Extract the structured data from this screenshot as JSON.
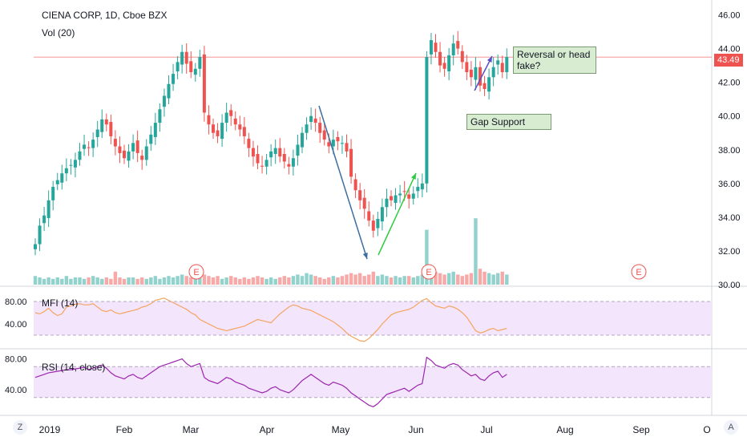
{
  "ui": {
    "left_button": "Z",
    "right_button": "A"
  },
  "colors": {
    "up": "#26a69a",
    "down": "#ef5350",
    "band": "#f3e5fb",
    "mfi": "#f4a460",
    "rsi": "#9c27b0",
    "price_line": "#ef5350"
  },
  "chart_data": [
    {
      "type": "candlestick",
      "title": "CIENA CORP, 1D, Cboe BZX",
      "volume_label": "Vol (20)",
      "last_price": 43.49,
      "last_price_label": "43.49",
      "y_ticks": [
        "46.00",
        "44.00",
        "42.00",
        "40.00",
        "38.00",
        "36.00",
        "34.00",
        "32.00",
        "30.00"
      ],
      "ylim": [
        30,
        46.5
      ],
      "x_ticks": [
        "2019",
        "Feb",
        "Mar",
        "Apr",
        "May",
        "Jun",
        "Jul",
        "Aug",
        "Sep",
        "O"
      ],
      "earnings_markers": [
        "E",
        "E",
        "E"
      ],
      "annotations": [
        {
          "text": "Reversal or head fake?"
        },
        {
          "text": "Gap Support"
        }
      ],
      "closes": [
        32.4,
        33.5,
        34.1,
        35.0,
        35.8,
        36.2,
        36.6,
        36.9,
        37.1,
        37.4,
        37.9,
        38.3,
        38.1,
        38.6,
        39.2,
        39.8,
        39.5,
        38.8,
        38.2,
        37.8,
        37.5,
        37.9,
        38.4,
        37.8,
        37.4,
        38.2,
        38.9,
        39.6,
        40.4,
        41.2,
        41.9,
        42.5,
        43.2,
        43.8,
        43.1,
        42.6,
        42.8,
        43.5,
        40.2,
        39.5,
        39.0,
        38.8,
        39.6,
        40.2,
        40.0,
        39.5,
        39.2,
        38.8,
        38.1,
        37.6,
        37.2,
        37.0,
        37.4,
        37.9,
        38.1,
        37.6,
        37.3,
        37.0,
        37.5,
        38.3,
        39.0,
        39.5,
        40.0,
        39.6,
        39.0,
        38.6,
        38.2,
        38.6,
        38.5,
        38.4,
        37.9,
        36.4,
        35.6,
        35.0,
        34.5,
        33.8,
        33.2,
        33.9,
        34.6,
        35.1,
        35.0,
        35.3,
        35.4,
        35.5,
        35.1,
        35.4,
        35.8,
        36.0,
        43.5,
        44.5,
        43.8,
        43.0,
        42.8,
        43.6,
        44.3,
        44.0,
        43.2,
        42.6,
        42.3,
        42.9,
        41.8,
        41.6,
        42.3,
        42.9,
        43.3,
        42.6,
        43.5
      ],
      "volumes": [
        0.6,
        0.5,
        0.4,
        0.5,
        0.4,
        0.5,
        0.4,
        0.6,
        0.4,
        0.5,
        0.5,
        0.4,
        0.5,
        0.6,
        0.5,
        0.4,
        0.5,
        0.4,
        0.9,
        0.5,
        0.4,
        0.5,
        0.5,
        0.4,
        0.5,
        0.4,
        0.5,
        0.6,
        0.4,
        0.5,
        0.6,
        0.5,
        0.6,
        0.7,
        0.6,
        0.5,
        0.8,
        0.9,
        0.7,
        0.6,
        0.5,
        0.6,
        0.4,
        0.5,
        0.6,
        0.5,
        0.4,
        0.5,
        0.4,
        0.5,
        0.6,
        0.5,
        0.4,
        0.5,
        0.4,
        0.5,
        0.6,
        0.5,
        0.6,
        0.7,
        0.6,
        0.8,
        0.7,
        0.6,
        0.5,
        0.4,
        0.5,
        0.6,
        0.5,
        0.6,
        0.7,
        0.8,
        0.7,
        0.8,
        0.6,
        0.7,
        0.9,
        0.6,
        0.7,
        0.6,
        0.5,
        0.6,
        0.5,
        0.6,
        0.6,
        0.5,
        0.6,
        0.7,
        3.8,
        1.0,
        0.9,
        0.8,
        0.7,
        0.8,
        0.9,
        0.7,
        0.6,
        0.7,
        0.8,
        4.6,
        1.1,
        0.9,
        0.8,
        0.7,
        0.8,
        0.9,
        0.7
      ]
    },
    {
      "type": "line",
      "title": "MFI (14)",
      "y_ticks": [
        "80.00",
        "40.00"
      ],
      "ylim": [
        0,
        100
      ],
      "bands": [
        80,
        20
      ],
      "values": [
        60,
        58,
        62,
        68,
        60,
        55,
        58,
        70,
        72,
        75,
        76,
        74,
        74,
        76,
        70,
        64,
        62,
        65,
        60,
        58,
        60,
        62,
        64,
        66,
        70,
        72,
        76,
        82,
        84,
        86,
        82,
        78,
        74,
        70,
        66,
        60,
        56,
        48,
        44,
        40,
        36,
        32,
        30,
        28,
        30,
        32,
        34,
        36,
        40,
        44,
        48,
        46,
        44,
        42,
        50,
        58,
        64,
        70,
        74,
        72,
        68,
        66,
        64,
        60,
        56,
        52,
        48,
        44,
        38,
        32,
        24,
        18,
        14,
        10,
        9,
        14,
        22,
        30,
        40,
        48,
        56,
        60,
        62,
        64,
        66,
        70,
        76,
        82,
        85,
        78,
        72,
        70,
        68,
        72,
        70,
        66,
        60,
        52,
        40,
        28,
        24,
        26,
        30,
        32,
        28,
        30,
        32
      ]
    },
    {
      "type": "line",
      "title": "RSI (14, close)",
      "y_ticks": [
        "80.00",
        "40.00"
      ],
      "ylim": [
        10,
        90
      ],
      "bands": [
        70,
        30
      ],
      "values": [
        56,
        58,
        60,
        62,
        63,
        64,
        65,
        66,
        66,
        67,
        68,
        69,
        66,
        68,
        70,
        72,
        68,
        62,
        58,
        56,
        54,
        58,
        60,
        56,
        54,
        58,
        62,
        66,
        70,
        72,
        74,
        76,
        78,
        80,
        74,
        70,
        72,
        74,
        56,
        52,
        50,
        48,
        52,
        56,
        54,
        50,
        48,
        46,
        42,
        40,
        38,
        36,
        38,
        42,
        44,
        40,
        38,
        36,
        40,
        46,
        52,
        56,
        60,
        56,
        52,
        48,
        46,
        50,
        48,
        46,
        42,
        36,
        32,
        28,
        24,
        20,
        18,
        22,
        28,
        34,
        36,
        38,
        40,
        42,
        38,
        42,
        46,
        48,
        82,
        78,
        72,
        70,
        68,
        72,
        74,
        72,
        66,
        62,
        58,
        60,
        54,
        52,
        58,
        62,
        64,
        56,
        60
      ]
    }
  ]
}
